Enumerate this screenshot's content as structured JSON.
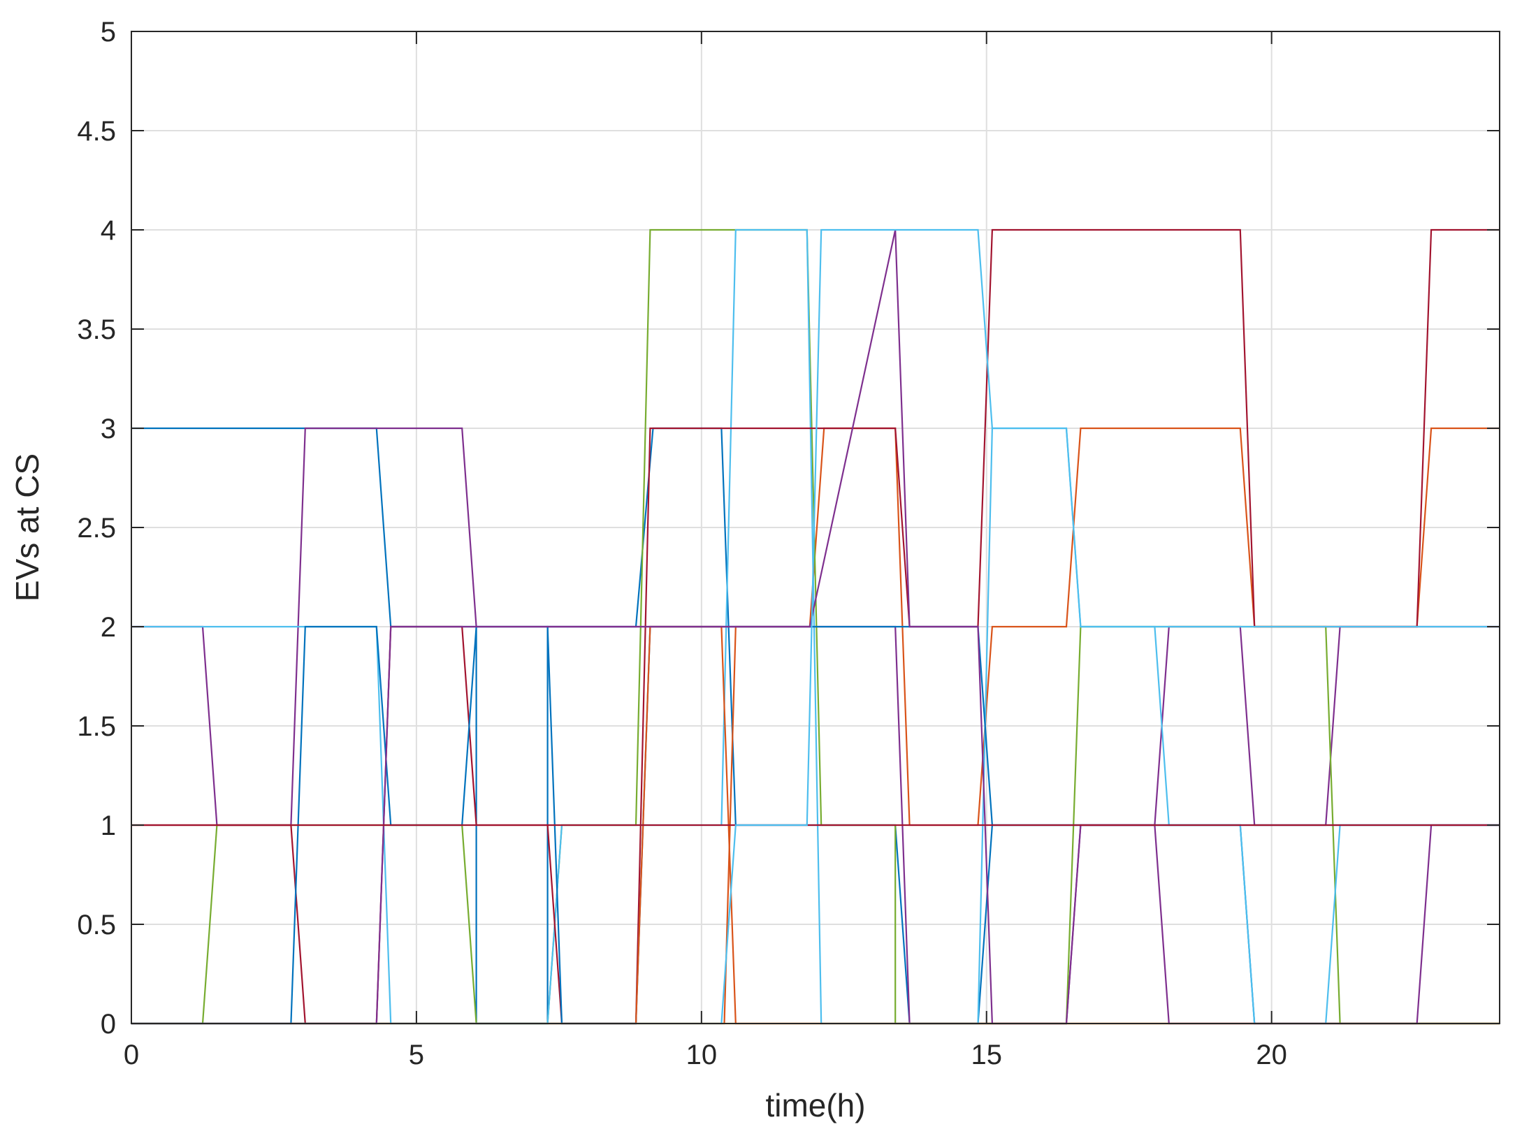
{
  "chart_data": {
    "type": "line",
    "title": "",
    "xlabel": "time(h)",
    "ylabel": "EVs at CS",
    "xlim": [
      0,
      24
    ],
    "ylim": [
      0,
      5
    ],
    "xticks": [
      0,
      5,
      10,
      15,
      20
    ],
    "xtick_labels": [
      "0",
      "5",
      "10",
      "15",
      "20"
    ],
    "yticks": [
      0,
      0.5,
      1,
      1.5,
      2,
      2.5,
      3,
      3.5,
      4,
      4.5,
      5
    ],
    "ytick_labels": [
      "0",
      "0.5",
      "1",
      "1.5",
      "2",
      "2.5",
      "3",
      "3.5",
      "4",
      "4.5",
      "5"
    ],
    "grid": true,
    "series": [
      {
        "color": "#0072BD",
        "points": [
          [
            0,
            3
          ],
          [
            4.3,
            3
          ],
          [
            4.55,
            2
          ],
          [
            6.05,
            2
          ],
          [
            6.05,
            0
          ],
          [
            7.3,
            0
          ],
          [
            7.3,
            2
          ],
          [
            8.85,
            2
          ],
          [
            9.15,
            3
          ],
          [
            10.35,
            3
          ],
          [
            10.6,
            1
          ],
          [
            13.4,
            1
          ],
          [
            13.65,
            0
          ],
          [
            14.85,
            0
          ],
          [
            15.1,
            1
          ],
          [
            19.45,
            1
          ],
          [
            19.7,
            0
          ],
          [
            24,
            0
          ]
        ]
      },
      {
        "color": "#D95319",
        "points": [
          [
            0,
            0
          ],
          [
            10.4,
            0
          ],
          [
            10.6,
            2
          ],
          [
            11.9,
            2
          ],
          [
            12.15,
            3
          ],
          [
            13.4,
            3
          ],
          [
            13.65,
            1
          ],
          [
            14.85,
            1
          ],
          [
            15.1,
            2
          ],
          [
            16.4,
            2
          ],
          [
            16.65,
            3
          ],
          [
            19.45,
            3
          ],
          [
            19.7,
            2
          ],
          [
            22.55,
            2
          ],
          [
            22.8,
            3
          ],
          [
            24,
            3
          ]
        ]
      },
      {
        "color": "#EDB120",
        "points": [
          [
            0,
            0
          ],
          [
            24,
            0
          ]
        ]
      },
      {
        "color": "#7E2F8E",
        "points": [
          [
            0,
            2
          ],
          [
            1.25,
            2
          ],
          [
            1.5,
            1
          ],
          [
            2.8,
            1
          ],
          [
            3.05,
            3
          ],
          [
            5.8,
            3
          ],
          [
            6.05,
            2
          ],
          [
            13.4,
            2
          ],
          [
            13.65,
            0
          ],
          [
            14.85,
            0
          ],
          [
            15.1,
            0
          ],
          [
            16.4,
            0
          ],
          [
            16.65,
            1
          ],
          [
            17.95,
            1
          ],
          [
            18.2,
            2
          ],
          [
            19.45,
            2
          ],
          [
            19.7,
            1
          ],
          [
            20.95,
            1
          ],
          [
            21.2,
            2
          ],
          [
            22.55,
            2
          ],
          [
            22.55,
            2
          ],
          [
            24,
            2
          ]
        ]
      },
      {
        "color": "#77AC30",
        "points": [
          [
            0,
            0
          ],
          [
            1.25,
            0
          ],
          [
            1.5,
            1
          ],
          [
            2.8,
            1
          ],
          [
            5.8,
            1
          ],
          [
            6.05,
            0
          ],
          [
            7.3,
            0
          ],
          [
            7.55,
            1
          ],
          [
            8.85,
            1
          ],
          [
            9.1,
            4
          ],
          [
            10.6,
            4
          ],
          [
            11.85,
            4
          ],
          [
            12.1,
            1
          ],
          [
            13.4,
            1
          ],
          [
            13.4,
            0
          ],
          [
            16.4,
            0
          ],
          [
            16.65,
            2
          ],
          [
            19.45,
            2
          ],
          [
            20.95,
            2
          ],
          [
            21.2,
            0
          ],
          [
            24,
            0
          ]
        ]
      },
      {
        "color": "#4DBEEE",
        "points": [
          [
            0,
            2
          ],
          [
            4.3,
            2
          ],
          [
            4.55,
            0
          ],
          [
            7.3,
            0
          ],
          [
            7.55,
            1
          ],
          [
            8.85,
            1
          ],
          [
            9.1,
            1
          ],
          [
            10.35,
            1
          ],
          [
            10.6,
            4
          ],
          [
            11.85,
            4
          ],
          [
            12.1,
            0
          ],
          [
            13.4,
            0
          ],
          [
            13.65,
            0
          ],
          [
            14.85,
            0
          ],
          [
            15.1,
            3
          ],
          [
            16.4,
            3
          ],
          [
            16.65,
            2
          ],
          [
            17.95,
            2
          ],
          [
            18.2,
            1
          ],
          [
            19.45,
            1
          ],
          [
            19.7,
            0
          ],
          [
            20.95,
            0
          ],
          [
            21.2,
            1
          ],
          [
            24,
            1
          ]
        ]
      },
      {
        "color": "#A2142F",
        "points": [
          [
            0,
            1
          ],
          [
            2.8,
            1
          ],
          [
            3.05,
            0
          ],
          [
            4.3,
            0
          ],
          [
            4.55,
            2
          ],
          [
            5.8,
            2
          ],
          [
            6.05,
            1
          ],
          [
            7.3,
            1
          ],
          [
            7.55,
            0
          ],
          [
            8.85,
            0
          ],
          [
            9.1,
            3
          ],
          [
            13.4,
            3
          ],
          [
            13.65,
            2
          ],
          [
            14.85,
            2
          ],
          [
            15.1,
            4
          ],
          [
            19.45,
            4
          ],
          [
            19.7,
            2
          ],
          [
            22.55,
            2
          ],
          [
            22.8,
            4
          ],
          [
            24,
            4
          ]
        ]
      },
      {
        "color": "#0072BD",
        "points": [
          [
            0,
            0
          ],
          [
            2.8,
            0
          ],
          [
            3.05,
            2
          ],
          [
            4.3,
            2
          ],
          [
            4.55,
            1
          ],
          [
            5.8,
            1
          ],
          [
            6.05,
            2
          ],
          [
            7.3,
            2
          ],
          [
            7.55,
            0
          ],
          [
            8.85,
            0
          ],
          [
            9.1,
            2
          ],
          [
            10.35,
            2
          ],
          [
            10.6,
            2
          ],
          [
            13.4,
            2
          ],
          [
            13.65,
            2
          ],
          [
            14.85,
            2
          ],
          [
            15.1,
            1
          ],
          [
            16.4,
            1
          ],
          [
            16.65,
            1
          ],
          [
            19.45,
            1
          ],
          [
            19.7,
            1
          ],
          [
            24,
            1
          ]
        ]
      },
      {
        "color": "#D95319",
        "points": [
          [
            0,
            0
          ],
          [
            8.85,
            0
          ],
          [
            9.1,
            2
          ],
          [
            10.35,
            2
          ],
          [
            10.6,
            0
          ],
          [
            24,
            0
          ]
        ]
      },
      {
        "color": "#7E2F8E",
        "points": [
          [
            0,
            0
          ],
          [
            4.3,
            0
          ],
          [
            4.55,
            2
          ],
          [
            9.1,
            2
          ],
          [
            9.1,
            2
          ],
          [
            11.9,
            2
          ],
          [
            11.9,
            2
          ],
          [
            13.4,
            4
          ],
          [
            13.65,
            2
          ],
          [
            14.85,
            2
          ],
          [
            15.1,
            0
          ],
          [
            16.4,
            0
          ],
          [
            16.65,
            1
          ],
          [
            17.95,
            1
          ],
          [
            18.2,
            0
          ],
          [
            22.55,
            0
          ],
          [
            22.8,
            1
          ],
          [
            24,
            1
          ]
        ]
      },
      {
        "color": "#A2142F",
        "points": [
          [
            0,
            1
          ],
          [
            24,
            1
          ]
        ]
      },
      {
        "color": "#4DBEEE",
        "points": [
          [
            0,
            0
          ],
          [
            9.1,
            0
          ],
          [
            9.1,
            0
          ],
          [
            10.35,
            0
          ],
          [
            10.6,
            1
          ],
          [
            11.85,
            1
          ],
          [
            12.1,
            4
          ],
          [
            14.85,
            4
          ],
          [
            15.1,
            3
          ],
          [
            16.4,
            3
          ],
          [
            16.65,
            2
          ],
          [
            24,
            2
          ]
        ]
      }
    ]
  }
}
